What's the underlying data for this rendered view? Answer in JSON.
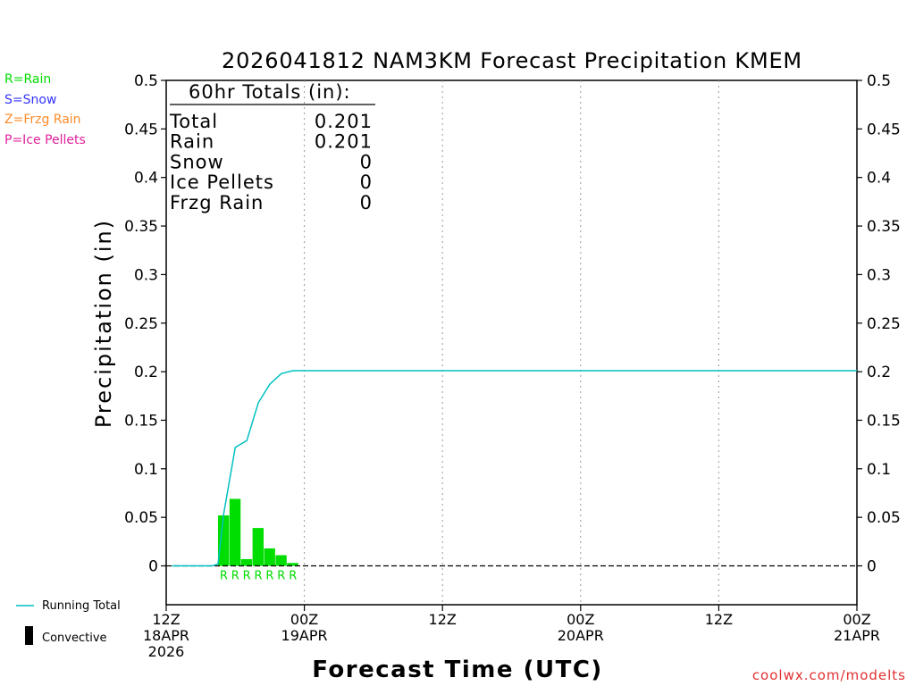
{
  "chart_data": {
    "type": "bar",
    "title": "2026041812 NAM3KM Forecast Precipitation KMEM",
    "xlabel": "Forecast Time (UTC)",
    "ylabel": "Precipitation (in)",
    "ylim": [
      -0.04,
      0.5
    ],
    "yticks": [
      0,
      0.05,
      0.1,
      0.15,
      0.2,
      0.25,
      0.3,
      0.35,
      0.4,
      0.45,
      0.5
    ],
    "ytick_labels": [
      "0",
      "0.05",
      "0.1",
      "0.15",
      "0.2",
      "0.25",
      "0.3",
      "0.35",
      "0.4",
      "0.45",
      "0.5"
    ],
    "xlim_hours": [
      0,
      60
    ],
    "xticks": [
      {
        "hour": 0,
        "lines": [
          "12Z",
          "18APR",
          "2026"
        ]
      },
      {
        "hour": 12,
        "lines": [
          "00Z",
          "19APR"
        ]
      },
      {
        "hour": 24,
        "lines": [
          "12Z"
        ]
      },
      {
        "hour": 36,
        "lines": [
          "00Z",
          "20APR"
        ]
      },
      {
        "hour": 48,
        "lines": [
          "12Z"
        ]
      },
      {
        "hour": 60,
        "lines": [
          "00Z",
          "21APR"
        ]
      }
    ],
    "bar_width_hours": 1,
    "bars": [
      {
        "hour": 5,
        "value": 0.052,
        "type": "R"
      },
      {
        "hour": 6,
        "value": 0.069,
        "type": "R"
      },
      {
        "hour": 7,
        "value": 0.007,
        "type": "R"
      },
      {
        "hour": 8,
        "value": 0.039,
        "type": "R"
      },
      {
        "hour": 9,
        "value": 0.018,
        "type": "R"
      },
      {
        "hour": 10,
        "value": 0.011,
        "type": "R"
      },
      {
        "hour": 11,
        "value": 0.003,
        "type": "R"
      }
    ],
    "running_total": {
      "hours": [
        0.5,
        1,
        2,
        3,
        4,
        4.5,
        5,
        6,
        7,
        8,
        9,
        10,
        11,
        12,
        60
      ],
      "values": [
        0,
        0,
        0,
        0,
        0,
        0.002,
        0.054,
        0.122,
        0.129,
        0.168,
        0.187,
        0.198,
        0.201,
        0.201,
        0.201
      ]
    },
    "colors": {
      "rain": "#00dd00",
      "snow": "#3333ff",
      "frzg_rain": "#ff8c2a",
      "ice_pellets": "#e0209a",
      "running_total": "#00c0c0",
      "convective": "#000000",
      "watermark": "#e03030"
    },
    "totals_box": {
      "heading": "60hr Totals (in):",
      "rows": [
        {
          "label": "Total",
          "value": "0.201"
        },
        {
          "label": "Rain",
          "value": "0.201"
        },
        {
          "label": "Snow",
          "value": "0"
        },
        {
          "label": "Ice Pellets",
          "value": "0"
        },
        {
          "label": "Frzg Rain",
          "value": "0"
        }
      ]
    }
  },
  "legend": {
    "types": [
      {
        "label": "R=Rain",
        "color": "#00dd00"
      },
      {
        "label": "S=Snow",
        "color": "#3333ff"
      },
      {
        "label": "Z=Frzg Rain",
        "color": "#ff8c2a"
      },
      {
        "label": "P=Ice Pellets",
        "color": "#e0209a"
      }
    ],
    "running_total_label": "Running Total",
    "convective_label": "Convective"
  },
  "watermark": "coolwx.com/modelts"
}
